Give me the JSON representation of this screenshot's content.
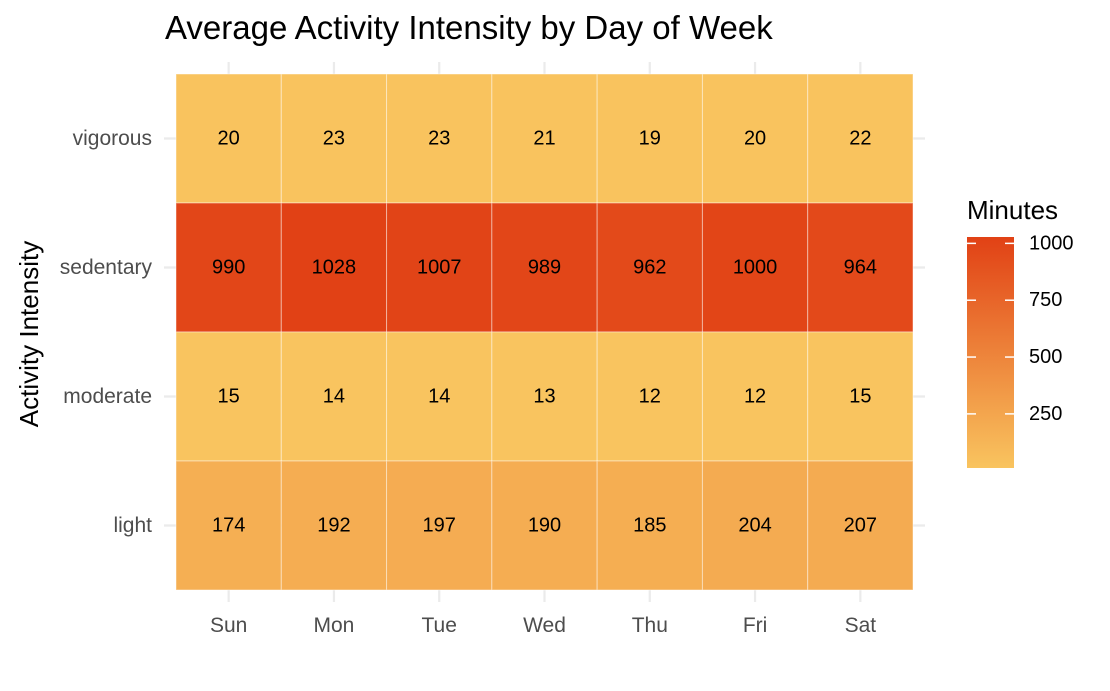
{
  "chart_data": {
    "type": "heatmap",
    "title": "Average Activity Intensity by Day of Week",
    "xlabel": "",
    "ylabel": "Activity Intensity",
    "x_categories": [
      "Sun",
      "Mon",
      "Tue",
      "Wed",
      "Thu",
      "Fri",
      "Sat"
    ],
    "y_categories": [
      "vigorous",
      "sedentary",
      "moderate",
      "light"
    ],
    "values": [
      [
        20,
        23,
        23,
        21,
        19,
        20,
        22
      ],
      [
        990,
        1028,
        1007,
        989,
        962,
        1000,
        964
      ],
      [
        15,
        14,
        14,
        13,
        12,
        12,
        15
      ],
      [
        174,
        192,
        197,
        190,
        185,
        204,
        207
      ]
    ],
    "legend": {
      "title": "Minutes",
      "ticks": [
        250,
        500,
        750,
        1000
      ],
      "range": [
        12,
        1028
      ],
      "placement": "right"
    },
    "color_low": "#f9c45f",
    "color_high": "#e14115",
    "grid": true
  }
}
